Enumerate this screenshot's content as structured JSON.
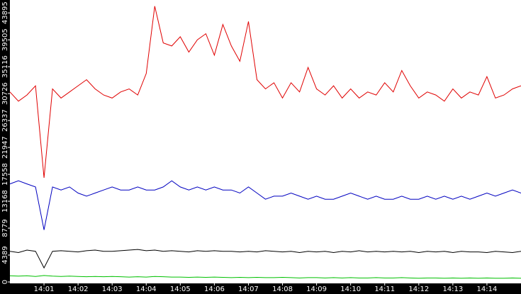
{
  "chart_data": {
    "type": "line",
    "x": [
      840,
      840.25,
      840.5,
      840.75,
      841,
      841.25,
      841.5,
      841.75,
      842,
      842.25,
      842.5,
      842.75,
      843,
      843.25,
      843.5,
      843.75,
      844,
      844.25,
      844.5,
      844.75,
      845,
      845.25,
      845.5,
      845.75,
      846,
      846.25,
      846.5,
      846.75,
      847,
      847.25,
      847.5,
      847.75,
      848,
      848.25,
      848.5,
      848.75,
      849,
      849.25,
      849.5,
      849.75,
      850,
      850.25,
      850.5,
      850.75,
      851,
      851.25,
      851.5,
      851.75,
      852,
      852.25,
      852.5,
      852.75,
      853,
      853.25,
      853.5,
      853.75,
      854,
      854.25,
      854.5,
      854.75,
      855
    ],
    "series": [
      {
        "color": "#e00000",
        "values": [
          31000,
          29500,
          30500,
          32000,
          17000,
          31500,
          30000,
          31000,
          32000,
          33000,
          31500,
          30500,
          30000,
          31000,
          31500,
          30500,
          34000,
          45000,
          39000,
          38500,
          40000,
          37500,
          39500,
          40500,
          37000,
          42000,
          38500,
          36000,
          42500,
          33000,
          31500,
          32500,
          30000,
          32500,
          31000,
          35000,
          31500,
          30500,
          32000,
          30000,
          31500,
          30000,
          31000,
          30500,
          32500,
          31000,
          34500,
          32000,
          30000,
          31000,
          30500,
          29500,
          31500,
          30000,
          31000,
          30500,
          33500,
          30000,
          30500,
          31500,
          32000
        ]
      },
      {
        "color": "#0000c0",
        "values": [
          16000,
          16500,
          16000,
          15500,
          8500,
          15500,
          15000,
          15500,
          14500,
          14000,
          14500,
          15000,
          15500,
          15000,
          15000,
          15500,
          15000,
          15000,
          15500,
          16500,
          15500,
          15000,
          15500,
          15000,
          15500,
          15000,
          15000,
          14500,
          15500,
          14500,
          13500,
          14000,
          14000,
          14500,
          14000,
          13500,
          14000,
          13500,
          13500,
          14000,
          14500,
          14000,
          13500,
          14000,
          13500,
          13500,
          14000,
          13500,
          13500,
          14000,
          13500,
          14000,
          13500,
          14000,
          13500,
          14000,
          14500,
          14000,
          14500,
          15000,
          14500
        ]
      },
      {
        "color": "#000000",
        "values": [
          5000,
          4800,
          5200,
          5000,
          2300,
          5000,
          5100,
          5000,
          4900,
          5100,
          5200,
          5000,
          5000,
          5100,
          5200,
          5300,
          5100,
          5200,
          5000,
          5100,
          5000,
          4900,
          5100,
          5000,
          5100,
          5000,
          5000,
          4900,
          5000,
          4900,
          5100,
          5000,
          4900,
          5000,
          4800,
          5000,
          4900,
          5000,
          4800,
          5000,
          4900,
          5100,
          4900,
          5000,
          4900,
          5000,
          4900,
          5000,
          4800,
          5000,
          4900,
          5000,
          4800,
          5000,
          4900,
          4900,
          4800,
          5000,
          4900,
          4800,
          5000
        ]
      },
      {
        "color": "#00c000",
        "values": [
          1000,
          950,
          1000,
          900,
          1050,
          950,
          900,
          950,
          900,
          850,
          900,
          850,
          900,
          850,
          800,
          850,
          800,
          900,
          850,
          800,
          800,
          750,
          800,
          750,
          800,
          750,
          700,
          750,
          700,
          750,
          700,
          700,
          750,
          700,
          650,
          700,
          700,
          650,
          700,
          650,
          700,
          650,
          650,
          700,
          650,
          650,
          700,
          650,
          600,
          650,
          650,
          600,
          650,
          600,
          650,
          600,
          650,
          600,
          600,
          650,
          600
        ]
      }
    ],
    "xlim": [
      840,
      855
    ],
    "xticks": [
      {
        "value": 841,
        "label": "14:01"
      },
      {
        "value": 842,
        "label": "14:02"
      },
      {
        "value": 843,
        "label": "14:03"
      },
      {
        "value": 844,
        "label": "14:04"
      },
      {
        "value": 845,
        "label": "14:05"
      },
      {
        "value": 846,
        "label": "14:06"
      },
      {
        "value": 847,
        "label": "14:07"
      },
      {
        "value": 848,
        "label": "14:08"
      },
      {
        "value": 849,
        "label": "14:09"
      },
      {
        "value": 850,
        "label": "14:10"
      },
      {
        "value": 851,
        "label": "14:11"
      },
      {
        "value": 852,
        "label": "14:12"
      },
      {
        "value": 853,
        "label": "14:13"
      },
      {
        "value": 854,
        "label": "14:14"
      }
    ],
    "ylim": [
      0,
      46000
    ],
    "yticks": [
      0,
      4389,
      8779,
      13168,
      17558,
      21947,
      26337,
      30726,
      35116,
      39505,
      43895
    ]
  }
}
